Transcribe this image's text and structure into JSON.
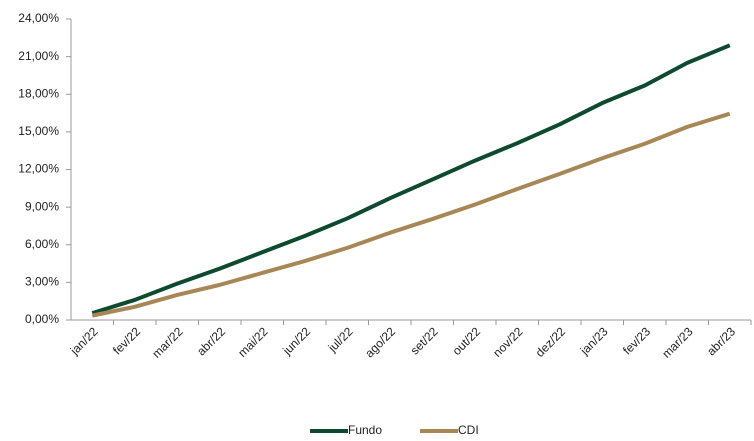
{
  "chart_data": {
    "type": "line",
    "categories": [
      "jan/22",
      "fev/22",
      "mar/22",
      "abr/22",
      "mai/22",
      "jun/22",
      "jul/22",
      "ago/22",
      "set/22",
      "out/22",
      "nov/22",
      "dez/22",
      "jan/23",
      "fev/23",
      "mar/23",
      "abr/23"
    ],
    "series": [
      {
        "name": "Fundo",
        "color": "#0d4a2f",
        "values": [
          0.55,
          1.6,
          2.9,
          4.1,
          5.4,
          6.7,
          8.1,
          9.7,
          11.2,
          12.7,
          14.1,
          15.6,
          17.3,
          18.7,
          20.5,
          21.9
        ]
      },
      {
        "name": "CDI",
        "color": "#a88757",
        "values": [
          0.35,
          1.05,
          2.0,
          2.8,
          3.75,
          4.7,
          5.75,
          6.95,
          8.05,
          9.2,
          10.45,
          11.65,
          12.9,
          14.05,
          15.4,
          16.45
        ]
      }
    ],
    "ylim": [
      0,
      24
    ],
    "yticks": [
      {
        "value": 0,
        "label": "0,00%"
      },
      {
        "value": 3,
        "label": "3,00%"
      },
      {
        "value": 6,
        "label": "6,00%"
      },
      {
        "value": 9,
        "label": "9,00%"
      },
      {
        "value": 12,
        "label": "12,00%"
      },
      {
        "value": 15,
        "label": "15,00%"
      },
      {
        "value": 18,
        "label": "18,00%"
      },
      {
        "value": 21,
        "label": "21,00%"
      },
      {
        "value": 24,
        "label": "24,00%"
      }
    ],
    "legend": "bottom"
  }
}
